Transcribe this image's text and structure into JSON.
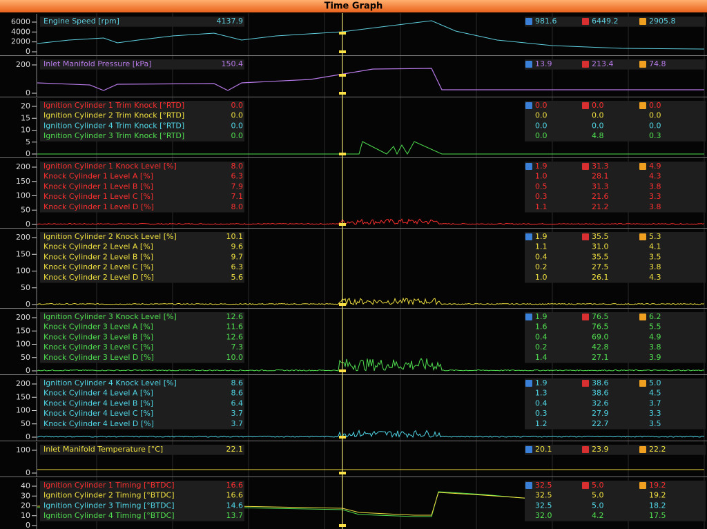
{
  "title": "Time Graph",
  "panels": [
    {
      "yticks": [
        "6000",
        "4000",
        "2000",
        "0"
      ],
      "channels": [
        {
          "name": "Engine Speed [rpm]",
          "value": "4137.9",
          "min": "981.6",
          "max": "6449.2",
          "avg": "2905.8",
          "color": "#5fd0e0"
        }
      ]
    },
    {
      "yticks": [
        "200",
        "0"
      ],
      "channels": [
        {
          "name": "Inlet Manifold Pressure [kPa]",
          "value": "150.4",
          "min": "13.9",
          "max": "213.4",
          "avg": "74.8",
          "color": "#b77ae8"
        }
      ]
    },
    {
      "yticks": [
        "20",
        "15",
        "10",
        "5",
        "0"
      ],
      "channels": [
        {
          "name": "Ignition Cylinder 1 Trim Knock [°RTD]",
          "value": "0.0",
          "min": "0.0",
          "max": "0.0",
          "avg": "0.0",
          "color": "#ff3030"
        },
        {
          "name": "Ignition Cylinder 2 Trim Knock [°RTD]",
          "value": "0.0",
          "min": "0.0",
          "max": "0.0",
          "avg": "0.0",
          "color": "#f0e040"
        },
        {
          "name": "Ignition Cylinder 4 Trim Knock [°RTD]",
          "value": "0.0",
          "min": "0.0",
          "max": "0.0",
          "avg": "0.0",
          "color": "#50d8e8"
        },
        {
          "name": "Ignition Cylinder 3 Trim Knock [°RTD]",
          "value": "0.0",
          "min": "0.0",
          "max": "4.8",
          "avg": "0.3",
          "color": "#50e050"
        }
      ]
    },
    {
      "yticks": [
        "200",
        "150",
        "100",
        "50",
        "0"
      ],
      "channels": [
        {
          "name": "Ignition Cylinder 1 Knock Level [%]",
          "value": "8.0",
          "min": "1.9",
          "max": "31.3",
          "avg": "4.9",
          "color": "#ff3030"
        },
        {
          "name": "Knock Cylinder 1 Level A [%]",
          "value": "6.3",
          "min": "1.0",
          "max": "28.1",
          "avg": "4.3",
          "color": "#ff3030"
        },
        {
          "name": "Knock Cylinder 1 Level B [%]",
          "value": "7.9",
          "min": "0.5",
          "max": "31.3",
          "avg": "3.8",
          "color": "#ff3030"
        },
        {
          "name": "Knock Cylinder 1 Level C [%]",
          "value": "7.1",
          "min": "0.3",
          "max": "21.6",
          "avg": "3.3",
          "color": "#ff3030"
        },
        {
          "name": "Knock Cylinder 1 Level D [%]",
          "value": "8.0",
          "min": "1.1",
          "max": "21.2",
          "avg": "3.8",
          "color": "#ff3030"
        }
      ]
    },
    {
      "yticks": [
        "200",
        "150",
        "100",
        "50",
        "0"
      ],
      "channels": [
        {
          "name": "Ignition Cylinder 2 Knock Level [%]",
          "value": "10.1",
          "min": "1.9",
          "max": "35.5",
          "avg": "5.3",
          "color": "#f0e040"
        },
        {
          "name": "Knock Cylinder 2 Level A [%]",
          "value": "9.6",
          "min": "1.1",
          "max": "31.0",
          "avg": "4.1",
          "color": "#f0e040"
        },
        {
          "name": "Knock Cylinder 2 Level B [%]",
          "value": "9.7",
          "min": "0.4",
          "max": "35.5",
          "avg": "3.5",
          "color": "#f0e040"
        },
        {
          "name": "Knock Cylinder 2 Level C [%]",
          "value": "6.3",
          "min": "0.2",
          "max": "27.5",
          "avg": "3.8",
          "color": "#f0e040"
        },
        {
          "name": "Knock Cylinder 2 Level D [%]",
          "value": "5.6",
          "min": "1.0",
          "max": "26.1",
          "avg": "4.3",
          "color": "#f0e040"
        }
      ]
    },
    {
      "yticks": [
        "200",
        "150",
        "100",
        "50",
        "0"
      ],
      "channels": [
        {
          "name": "Ignition Cylinder 3 Knock Level [%]",
          "value": "12.6",
          "min": "1.9",
          "max": "76.5",
          "avg": "6.2",
          "color": "#50e050"
        },
        {
          "name": "Knock Cylinder 3 Level A [%]",
          "value": "11.6",
          "min": "1.6",
          "max": "76.5",
          "avg": "5.5",
          "color": "#50e050"
        },
        {
          "name": "Knock Cylinder 3 Level B [%]",
          "value": "12.6",
          "min": "0.4",
          "max": "69.0",
          "avg": "4.9",
          "color": "#50e050"
        },
        {
          "name": "Knock Cylinder 3 Level C [%]",
          "value": "7.3",
          "min": "0.2",
          "max": "42.8",
          "avg": "3.8",
          "color": "#50e050"
        },
        {
          "name": "Knock Cylinder 3 Level D [%]",
          "value": "10.0",
          "min": "1.4",
          "max": "27.1",
          "avg": "3.9",
          "color": "#50e050"
        }
      ]
    },
    {
      "yticks": [
        "200",
        "150",
        "100",
        "50",
        "0"
      ],
      "channels": [
        {
          "name": "Ignition Cylinder 4 Knock Level [%]",
          "value": "8.6",
          "min": "1.9",
          "max": "38.6",
          "avg": "5.0",
          "color": "#50d8e8"
        },
        {
          "name": "Knock Cylinder 4 Level A [%]",
          "value": "8.6",
          "min": "1.3",
          "max": "38.6",
          "avg": "4.5",
          "color": "#50d8e8"
        },
        {
          "name": "Knock Cylinder 4 Level B [%]",
          "value": "6.4",
          "min": "0.4",
          "max": "32.6",
          "avg": "3.7",
          "color": "#50d8e8"
        },
        {
          "name": "Knock Cylinder 4 Level C [%]",
          "value": "3.7",
          "min": "0.3",
          "max": "27.9",
          "avg": "3.3",
          "color": "#50d8e8"
        },
        {
          "name": "Knock Cylinder 4 Level D [%]",
          "value": "3.7",
          "min": "1.2",
          "max": "22.7",
          "avg": "3.5",
          "color": "#50d8e8"
        }
      ]
    },
    {
      "yticks": [
        "100",
        "0"
      ],
      "channels": [
        {
          "name": "Inlet Manifold Temperature [°C]",
          "value": "22.1",
          "min": "20.1",
          "max": "23.9",
          "avg": "22.2",
          "color": "#f0e040"
        }
      ]
    },
    {
      "yticks": [
        "40",
        "30",
        "20",
        "10",
        "0"
      ],
      "channels": [
        {
          "name": "Ignition Cylinder 1 Timing [°BTDC]",
          "value": "16.6",
          "min": "32.5",
          "max": "5.0",
          "avg": "19.2",
          "color": "#ff3030"
        },
        {
          "name": "Ignition Cylinder 2 Timing [°BTDC]",
          "value": "16.6",
          "min": "32.5",
          "max": "5.0",
          "avg": "19.2",
          "color": "#f0e040"
        },
        {
          "name": "Ignition Cylinder 3 Timing [°BTDC]",
          "value": "14.6",
          "min": "32.5",
          "max": "5.0",
          "avg": "18.2",
          "color": "#50d8e8"
        },
        {
          "name": "Ignition Cylinder 4 Timing [°BTDC]",
          "value": "13.7",
          "min": "32.0",
          "max": "4.2",
          "avg": "17.5",
          "color": "#50e050"
        }
      ]
    }
  ]
}
